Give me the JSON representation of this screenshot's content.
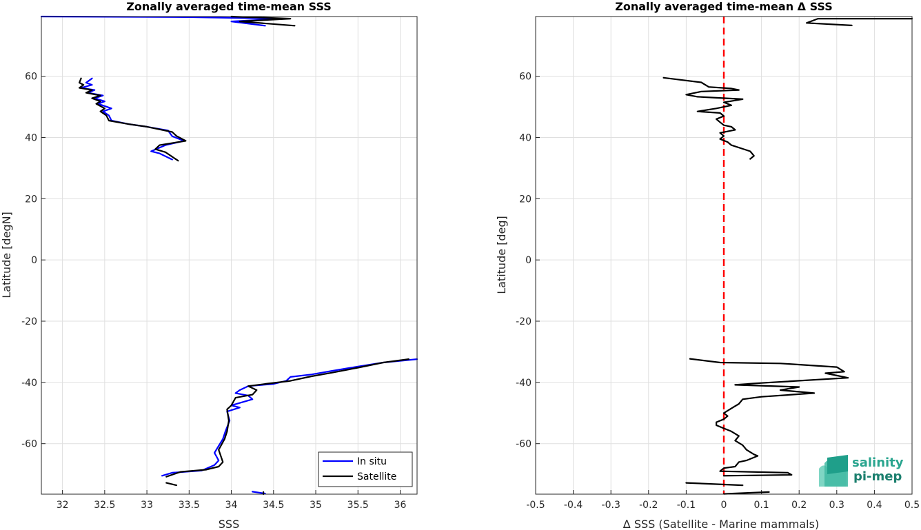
{
  "chart_data": [
    {
      "type": "line",
      "title": "Zonally averaged time-mean SSS",
      "xlabel": "SSS",
      "ylabel": "Latitude [degN]",
      "xlim": [
        31.75,
        36.2
      ],
      "ylim": [
        -76.5,
        79.5
      ],
      "xticks": [
        "32",
        "32.5",
        "33",
        "33.5",
        "34",
        "34.5",
        "35",
        "35.5",
        "36"
      ],
      "yticks": [
        "60",
        "40",
        "20",
        "0",
        "-20",
        "-40",
        "-60"
      ],
      "grid": true,
      "legend_position": "bottom-right",
      "series": [
        {
          "name": "In situ",
          "color": "#0000ff",
          "segments": [
            [
              [
                31.75,
                79.5
              ],
              [
                33.5,
                79.3
              ],
              [
                34.6,
                78.8
              ],
              [
                34.0,
                77.9
              ],
              [
                34.4,
                76.5
              ]
            ],
            [
              [
                32.35,
                59.3
              ],
              [
                32.28,
                57.9
              ],
              [
                32.35,
                57.2
              ],
              [
                32.22,
                56.2
              ],
              [
                32.38,
                55.5
              ],
              [
                32.3,
                54.6
              ],
              [
                32.48,
                53.7
              ],
              [
                32.38,
                52.8
              ],
              [
                32.5,
                51.8
              ],
              [
                32.42,
                51.0
              ],
              [
                32.58,
                49.5
              ],
              [
                32.48,
                48.5
              ],
              [
                32.55,
                47.2
              ],
              [
                32.58,
                45.5
              ],
              [
                32.8,
                44.3
              ],
              [
                33.0,
                43.5
              ],
              [
                33.25,
                42.3
              ],
              [
                33.3,
                40.4
              ],
              [
                33.44,
                38.9
              ],
              [
                33.22,
                37.5
              ],
              [
                33.05,
                35.5
              ],
              [
                33.15,
                34.8
              ],
              [
                33.3,
                32.8
              ]
            ],
            [
              [
                36.2,
                -32.4
              ],
              [
                35.8,
                -33.5
              ],
              [
                35.5,
                -34.8
              ],
              [
                35.2,
                -36.2
              ],
              [
                34.95,
                -37.4
              ],
              [
                34.7,
                -38.2
              ],
              [
                34.65,
                -39.5
              ],
              [
                34.5,
                -40.5
              ],
              [
                34.2,
                -41.2
              ],
              [
                34.1,
                -42.5
              ],
              [
                34.05,
                -43.5
              ],
              [
                34.2,
                -44.3
              ],
              [
                34.25,
                -45.5
              ],
              [
                34.0,
                -47.5
              ],
              [
                34.1,
                -48.2
              ],
              [
                33.95,
                -49.5
              ],
              [
                33.98,
                -52.5
              ],
              [
                33.93,
                -56.0
              ],
              [
                33.9,
                -58.5
              ],
              [
                33.8,
                -63.0
              ],
              [
                33.85,
                -65.5
              ],
              [
                33.8,
                -67.0
              ],
              [
                33.65,
                -68.8
              ],
              [
                33.3,
                -69.5
              ],
              [
                33.18,
                -70.5
              ]
            ],
            [
              [
                34.25,
                -75.7
              ],
              [
                34.4,
                -76.3
              ]
            ]
          ]
        },
        {
          "name": "Satellite",
          "color": "#000000",
          "segments": [
            [
              [
                34.0,
                79.5
              ],
              [
                34.7,
                78.8
              ],
              [
                34.1,
                77.9
              ],
              [
                34.75,
                76.5
              ]
            ],
            [
              [
                32.22,
                59.3
              ],
              [
                32.2,
                57.9
              ],
              [
                32.25,
                57.2
              ],
              [
                32.2,
                56.2
              ],
              [
                32.35,
                55.5
              ],
              [
                32.28,
                54.6
              ],
              [
                32.45,
                53.7
              ],
              [
                32.35,
                52.8
              ],
              [
                32.45,
                51.8
              ],
              [
                32.4,
                51.0
              ],
              [
                32.5,
                49.5
              ],
              [
                32.45,
                48.5
              ],
              [
                32.52,
                47.2
              ],
              [
                32.55,
                45.5
              ],
              [
                32.8,
                44.3
              ],
              [
                33.0,
                43.5
              ],
              [
                33.3,
                41.8
              ],
              [
                33.35,
                40.5
              ],
              [
                33.46,
                38.9
              ],
              [
                33.15,
                37.5
              ],
              [
                33.1,
                36.2
              ],
              [
                33.22,
                35.2
              ],
              [
                33.37,
                32.4
              ]
            ],
            [
              [
                36.1,
                -32.4
              ],
              [
                35.8,
                -33.5
              ],
              [
                35.5,
                -35.2
              ],
              [
                35.2,
                -36.8
              ],
              [
                34.95,
                -38.0
              ],
              [
                34.7,
                -39.5
              ],
              [
                34.4,
                -40.5
              ],
              [
                34.2,
                -41.2
              ],
              [
                34.3,
                -42.5
              ],
              [
                34.25,
                -44.0
              ],
              [
                34.05,
                -45.0
              ],
              [
                34.0,
                -47.5
              ],
              [
                33.95,
                -48.8
              ],
              [
                33.97,
                -52.5
              ],
              [
                33.95,
                -56.0
              ],
              [
                33.92,
                -58.5
              ],
              [
                33.85,
                -62.0
              ],
              [
                33.9,
                -66.0
              ],
              [
                33.85,
                -67.5
              ],
              [
                33.7,
                -68.5
              ],
              [
                33.4,
                -69.2
              ],
              [
                33.23,
                -70.8
              ]
            ],
            [
              [
                33.23,
                -72.8
              ],
              [
                33.35,
                -73.6
              ]
            ],
            [
              [
                34.38,
                -75.8
              ],
              [
                34.38,
                -76.5
              ]
            ]
          ]
        }
      ]
    },
    {
      "type": "line",
      "title": "Zonally averaged time-mean Δ SSS",
      "xlabel": "Δ SSS (Satellite - Marine mammals)",
      "ylabel": "Latitude [deg]",
      "xlim": [
        -0.5,
        0.5
      ],
      "ylim": [
        -76.5,
        79.5
      ],
      "xticks": [
        "-0.5",
        "-0.4",
        "-0.3",
        "-0.2",
        "-0.1",
        "0",
        "0.1",
        "0.2",
        "0.3",
        "0.4",
        "0.5"
      ],
      "yticks": [
        "60",
        "40",
        "20",
        "0",
        "-20",
        "-40",
        "-60"
      ],
      "grid": true,
      "reference_line": {
        "x": 0,
        "color": "#ff0000",
        "style": "dashed"
      },
      "series": [
        {
          "name": "",
          "color": "#000000",
          "segments": [
            [
              [
                0.5,
                78.8
              ],
              [
                0.25,
                78.8
              ],
              [
                0.22,
                77.4
              ],
              [
                0.34,
                76.6
              ]
            ],
            [
              [
                -0.16,
                59.5
              ],
              [
                -0.06,
                58.0
              ],
              [
                -0.04,
                56.5
              ],
              [
                0.02,
                56.0
              ],
              [
                0.04,
                55.5
              ],
              [
                -0.06,
                55.0
              ],
              [
                -0.1,
                54.0
              ],
              [
                -0.07,
                53.3
              ],
              [
                0.05,
                52.5
              ],
              [
                0.0,
                51.5
              ],
              [
                0.02,
                50.5
              ],
              [
                -0.02,
                49.5
              ],
              [
                -0.07,
                48.5
              ],
              [
                -0.01,
                48.0
              ],
              [
                0.0,
                47.0
              ],
              [
                -0.02,
                46.0
              ],
              [
                -0.01,
                45.0
              ],
              [
                0.0,
                44.0
              ],
              [
                0.02,
                43.5
              ],
              [
                0.03,
                42.5
              ],
              [
                -0.01,
                41.5
              ],
              [
                0.0,
                40.5
              ],
              [
                -0.01,
                39.5
              ],
              [
                0.01,
                38.5
              ],
              [
                0.02,
                37.5
              ],
              [
                0.07,
                35.5
              ],
              [
                0.08,
                34.0
              ],
              [
                0.07,
                33.0
              ]
            ],
            [
              [
                -0.09,
                -32.3
              ],
              [
                -0.01,
                -33.5
              ],
              [
                0.15,
                -33.8
              ],
              [
                0.3,
                -35.0
              ],
              [
                0.32,
                -36.5
              ],
              [
                0.27,
                -37.0
              ],
              [
                0.33,
                -38.5
              ],
              [
                0.1,
                -40.2
              ],
              [
                0.03,
                -40.8
              ],
              [
                0.2,
                -41.5
              ],
              [
                0.15,
                -42.5
              ],
              [
                0.24,
                -43.5
              ],
              [
                0.1,
                -44.7
              ],
              [
                0.05,
                -45.5
              ],
              [
                0.04,
                -47.0
              ],
              [
                0.02,
                -48.5
              ],
              [
                0.0,
                -50.0
              ],
              [
                0.01,
                -51.0
              ],
              [
                0.0,
                -52.0
              ],
              [
                -0.02,
                -53.0
              ],
              [
                -0.02,
                -54.0
              ],
              [
                0.0,
                -55.0
              ],
              [
                0.02,
                -56.0
              ],
              [
                0.04,
                -57.5
              ],
              [
                0.03,
                -59.0
              ],
              [
                0.05,
                -60.5
              ],
              [
                0.06,
                -62.0
              ],
              [
                0.08,
                -63.5
              ],
              [
                0.09,
                -64.0
              ],
              [
                0.06,
                -65.5
              ],
              [
                0.04,
                -66.0
              ],
              [
                0.03,
                -67.5
              ],
              [
                0.0,
                -68.0
              ],
              [
                -0.01,
                -69.0
              ],
              [
                0.17,
                -69.5
              ],
              [
                0.18,
                -70.2
              ],
              [
                0.0,
                -70.5
              ]
            ],
            [
              [
                -0.1,
                -72.8
              ],
              [
                0.05,
                -73.6
              ]
            ],
            [
              [
                0.0,
                -76.4
              ],
              [
                0.12,
                -75.8
              ]
            ]
          ]
        }
      ]
    }
  ],
  "legend": {
    "items": [
      {
        "label": "In situ",
        "color": "#0000ff"
      },
      {
        "label": "Satellite",
        "color": "#000000"
      }
    ]
  },
  "logo": {
    "line1": "salinity",
    "line2": "pi-mep"
  }
}
